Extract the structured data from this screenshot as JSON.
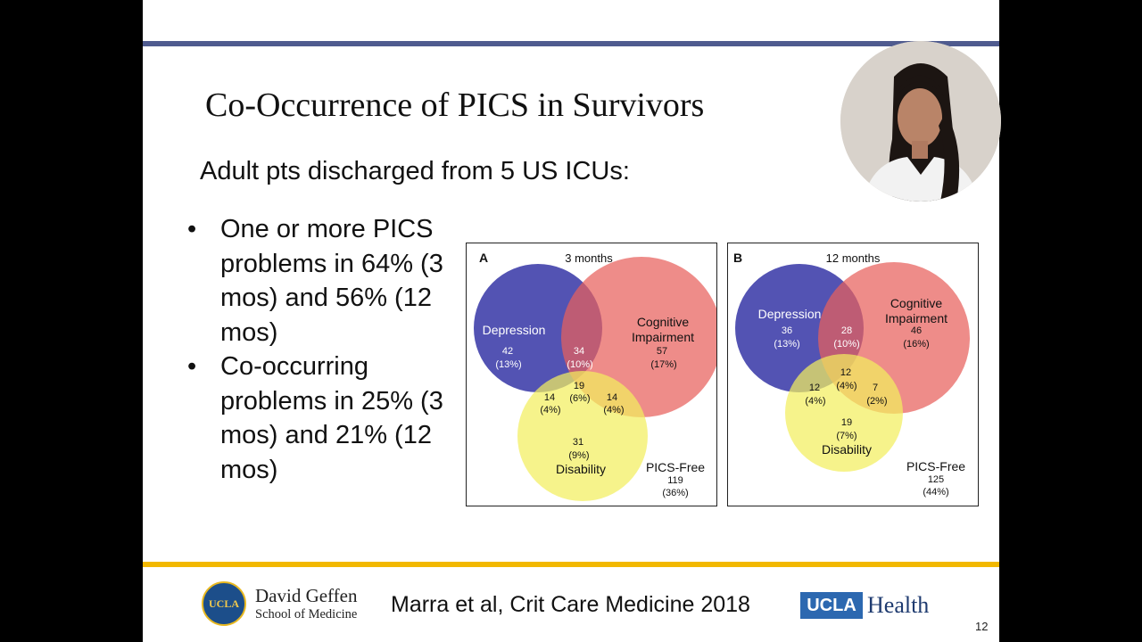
{
  "slide": {
    "title": "Co-Occurrence of PICS in Survivors",
    "subtitle": "Adult pts discharged from 5 US ICUs:",
    "bullets": [
      "One or more PICS problems in 64% (3 mos) and 56% (12 mos)",
      "Co-occurring problems in 25% (3 mos) and 21% (12 mos)"
    ],
    "bullet_glyph": "•",
    "citation": "Marra et al, Crit Care Medicine 2018",
    "page_number": "12"
  },
  "footer": {
    "seal_text": "UCLA",
    "school_line1": "David Geffen",
    "school_line2": "School of Medicine",
    "ucla_box": "UCLA",
    "health_text": "Health"
  },
  "venn": {
    "colors": {
      "depression": "#3b3ba8",
      "cognitive": "#e8605c",
      "disability": "#f2ee5e"
    },
    "panels": [
      {
        "letter": "A",
        "period": "3 months",
        "labels": {
          "depression": "Depression",
          "cognitive_1": "Cognitive",
          "cognitive_2": "Impairment",
          "disability": "Disability",
          "pics_free": "PICS-Free"
        },
        "counts": {
          "depression_only": [
            "42",
            "(13%)"
          ],
          "depression_cognitive": [
            "34",
            "(10%)"
          ],
          "cognitive_only": [
            "57",
            "(17%)"
          ],
          "all_three": [
            "19",
            "(6%)"
          ],
          "depression_disability": [
            "14",
            "(4%)"
          ],
          "cognitive_disability": [
            "14",
            "(4%)"
          ],
          "disability_only": [
            "31",
            "(9%)"
          ],
          "pics_free": [
            "119",
            "(36%)"
          ]
        }
      },
      {
        "letter": "B",
        "period": "12 months",
        "labels": {
          "depression": "Depression",
          "cognitive_1": "Cognitive",
          "cognitive_2": "Impairment",
          "disability": "Disability",
          "pics_free": "PICS-Free"
        },
        "counts": {
          "depression_only": [
            "36",
            "(13%)"
          ],
          "depression_cognitive": [
            "28",
            "(10%)"
          ],
          "cognitive_only": [
            "46",
            "(16%)"
          ],
          "all_three": [
            "12",
            "(4%)"
          ],
          "depression_disability": [
            "12",
            "(4%)"
          ],
          "cognitive_disability": [
            "7",
            "(2%)"
          ],
          "disability_only": [
            "19",
            "(7%)"
          ],
          "pics_free": [
            "125",
            "(44%)"
          ]
        }
      }
    ]
  }
}
